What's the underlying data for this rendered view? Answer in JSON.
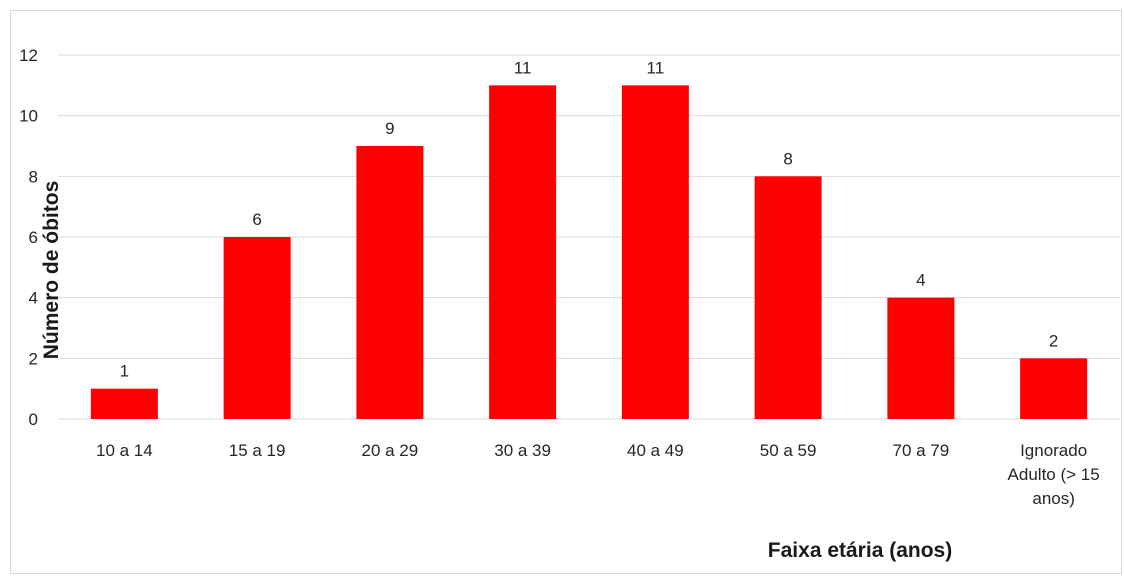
{
  "chart_data": {
    "type": "bar",
    "categories": [
      [
        "10 a 14"
      ],
      [
        "15 a 19"
      ],
      [
        "20 a 29"
      ],
      [
        "30 a 39"
      ],
      [
        "40 a 49"
      ],
      [
        "50 a 59"
      ],
      [
        "70 a 79"
      ],
      [
        "Ignorado",
        "Adulto (> 15",
        "anos)"
      ]
    ],
    "values": [
      1,
      6,
      9,
      11,
      11,
      8,
      4,
      2
    ],
    "data_labels": [
      "1",
      "6",
      "9",
      "11",
      "11",
      "8",
      "4",
      "2"
    ],
    "xlabel": "Faixa etária (anos)",
    "ylabel": "Número de óbitos",
    "ylim": [
      0,
      12
    ],
    "yticks": [
      0,
      2,
      4,
      6,
      8,
      10,
      12
    ],
    "grid": true,
    "legend": "none",
    "bar_color": "#ff0000",
    "grid_color": "#d9d9d9"
  }
}
